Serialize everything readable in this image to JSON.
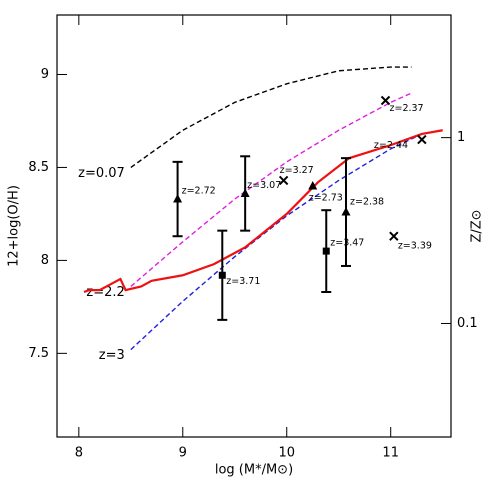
{
  "chart_data": {
    "type": "line",
    "xlabel": "log (M*/M⊙)",
    "ylabel": "12+log(O/H)",
    "y2label": "Z/Z⊙",
    "xlim": [
      7.79,
      11.58
    ],
    "ylim": [
      7.05,
      9.32
    ],
    "xticks": [
      8,
      9,
      10,
      11
    ],
    "yticks": [
      7.5,
      8,
      8.5,
      9
    ],
    "y2lim": [
      0.0245,
      4.57
    ],
    "y2ticks": [
      0.1,
      1
    ],
    "y2log": true,
    "series": [
      {
        "name": "z=0.07",
        "color": "#000000",
        "dashed": true,
        "x": [
          8.5,
          9,
          9.5,
          10,
          10.5,
          11,
          11.2
        ],
        "values": [
          8.5,
          8.7,
          8.85,
          8.95,
          9.02,
          9.04,
          9.04
        ]
      },
      {
        "name": "z=2.2",
        "color": "#e020e0",
        "dashed": true,
        "x": [
          8.5,
          9,
          9.5,
          10,
          10.5,
          11,
          11.2
        ],
        "values": [
          7.86,
          8.1,
          8.33,
          8.53,
          8.7,
          8.85,
          8.9
        ]
      },
      {
        "name": "z=3",
        "color": "#2020e0",
        "dashed": true,
        "x": [
          8.5,
          9,
          9.5,
          10,
          10.5,
          11,
          11.3
        ],
        "values": [
          7.52,
          7.78,
          8.02,
          8.24,
          8.43,
          8.6,
          8.68
        ]
      },
      {
        "color": "#ee1111",
        "dashed": false,
        "x": [
          8.05,
          8.1,
          8.2,
          8.3,
          8.4,
          8.45,
          8.6,
          8.7,
          9,
          9.3,
          9.6,
          10,
          10.3,
          10.6,
          11,
          11.3,
          11.5
        ],
        "values": [
          7.83,
          7.84,
          7.84,
          7.87,
          7.9,
          7.84,
          7.86,
          7.89,
          7.92,
          7.98,
          8.07,
          8.25,
          8.42,
          8.55,
          8.62,
          8.68,
          8.7
        ]
      }
    ],
    "points": [
      {
        "label": "z=2.72",
        "marker": "triangle",
        "x": 8.95,
        "y": 8.33,
        "err": 0.2
      },
      {
        "label": "z=3.07",
        "marker": "triangle",
        "x": 9.6,
        "y": 8.36,
        "err": 0.2
      },
      {
        "label": "z=3.71",
        "marker": "square",
        "x": 9.38,
        "y": 7.92,
        "err": 0.24
      },
      {
        "label": "z=3.27",
        "marker": "cross",
        "x": 9.97,
        "y": 8.43
      },
      {
        "label": "z=2.73",
        "marker": "triangle",
        "x": 10.25,
        "y": 8.4
      },
      {
        "label": "z=3.47",
        "marker": "square",
        "x": 10.38,
        "y": 8.05,
        "err": 0.22
      },
      {
        "label": "z=2.38",
        "marker": "triangle",
        "x": 10.57,
        "y": 8.26,
        "err": 0.29
      },
      {
        "label": "z=2.37",
        "marker": "cross",
        "x": 10.95,
        "y": 8.86
      },
      {
        "label": "z=2.44",
        "marker": "cross",
        "x": 11.3,
        "y": 8.65
      },
      {
        "label": "z=3.39",
        "marker": "cross",
        "x": 11.03,
        "y": 8.13
      }
    ]
  }
}
